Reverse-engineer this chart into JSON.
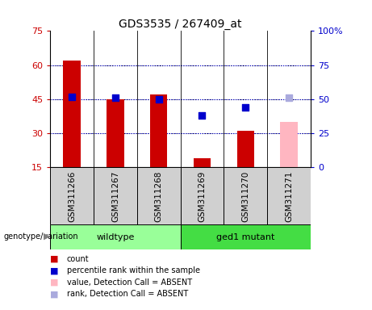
{
  "title": "GDS3535 / 267409_at",
  "samples": [
    "GSM311266",
    "GSM311267",
    "GSM311268",
    "GSM311269",
    "GSM311270",
    "GSM311271"
  ],
  "count_values": [
    62.0,
    45.0,
    47.0,
    19.0,
    31.0,
    35.0
  ],
  "rank_values": [
    52.0,
    51.0,
    50.0,
    38.0,
    44.0,
    51.0
  ],
  "absent_flags": [
    false,
    false,
    false,
    false,
    false,
    true
  ],
  "bar_color_normal": "#CC0000",
  "bar_color_absent": "#FFB6C1",
  "dot_color_normal": "#0000CC",
  "dot_color_absent": "#AAAADD",
  "ylim_left": [
    15,
    75
  ],
  "ylim_right": [
    0,
    100
  ],
  "yticks_left": [
    15,
    30,
    45,
    60,
    75
  ],
  "yticks_right": [
    0,
    25,
    50,
    75,
    100
  ],
  "ytick_labels_right": [
    "0",
    "25",
    "50",
    "75",
    "100%"
  ],
  "groups": [
    {
      "label": "wildtype",
      "start": 0,
      "end": 3,
      "color": "#99FF99"
    },
    {
      "label": "ged1 mutant",
      "start": 3,
      "end": 6,
      "color": "#44DD44"
    }
  ],
  "group_label_prefix": "genotype/variation",
  "legend_items": [
    {
      "label": "count",
      "color": "#CC0000"
    },
    {
      "label": "percentile rank within the sample",
      "color": "#0000CC"
    },
    {
      "label": "value, Detection Call = ABSENT",
      "color": "#FFB6C1"
    },
    {
      "label": "rank, Detection Call = ABSENT",
      "color": "#AAAADD"
    }
  ],
  "bar_width": 0.4,
  "dot_size": 40,
  "title_fontsize": 10,
  "tick_fontsize": 8,
  "label_fontsize": 7.5,
  "group_fontsize": 8,
  "legend_fontsize": 7
}
